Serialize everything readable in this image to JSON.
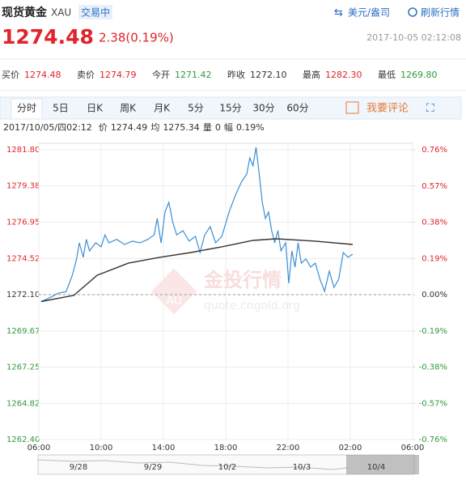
{
  "header": {
    "name": "现货黄金",
    "code": "XAU",
    "status": "交易中",
    "currency": "美元/盎司",
    "refresh": "刷新行情",
    "price": "1274.48",
    "change": "2.38(0.19%)",
    "time": "2017-10-05 02:12:08"
  },
  "quotes": [
    {
      "label": "买价",
      "value": "1274.48"
    },
    {
      "label": "卖价",
      "value": "1274.79"
    },
    {
      "label": "今开",
      "value": "1271.42"
    },
    {
      "label": "昨收",
      "value": "1272.10"
    },
    {
      "label": "最高",
      "value": "1282.30"
    },
    {
      "label": "最低",
      "value": "1269.80"
    }
  ],
  "tabs": [
    "分时",
    "5日",
    "日K",
    "周K",
    "月K",
    "5分",
    "15分",
    "30分",
    "60分"
  ],
  "comment": "我要评论",
  "info": [
    "2017/10/05/四02:12",
    "价",
    "1274.49",
    "均",
    "1275.34",
    "量",
    "0",
    "幅",
    "0.19%"
  ],
  "watermark": {
    "logo": "AU",
    "name": "金投行情",
    "site": "quote.cngold.org"
  },
  "navigator": {
    "labels": [
      "9/28",
      "9/29",
      "10/2",
      "10/3",
      "10/4"
    ]
  },
  "chart_data": {
    "type": "line",
    "xlim": [
      0,
      1440
    ],
    "xticks": [
      {
        "value": 0,
        "label": "06:00"
      },
      {
        "value": 240,
        "label": "10:00"
      },
      {
        "value": 480,
        "label": "14:00"
      },
      {
        "value": 720,
        "label": "18:00"
      },
      {
        "value": 960,
        "label": "22:00"
      },
      {
        "value": 1200,
        "label": "02:00"
      },
      {
        "value": 1440,
        "label": "06:00"
      }
    ],
    "ylim": [
      1262.4,
      1281.8
    ],
    "yticks": [
      {
        "value": 1281.8,
        "label": "1281.80"
      },
      1279.38,
      1276.95,
      1274.52,
      {
        "value": 1272.1,
        "label": "1272.10"
      },
      1269.67,
      1267.25,
      1264.82,
      {
        "value": 1262.4,
        "label": "1262.40"
      }
    ],
    "y2lim": [
      -0.76,
      0.76
    ],
    "y2ticks": [
      {
        "value": 0.76,
        "label": "0.76%"
      },
      {
        "value": 0.57,
        "label": "0.57%"
      },
      {
        "value": 0.38,
        "label": "0.38%"
      },
      {
        "value": 0.19,
        "label": "0.19%"
      },
      {
        "value": 0,
        "label": "0.00%"
      },
      {
        "value": -0.19,
        "label": "-0.19%"
      },
      {
        "value": -0.38,
        "label": "-0.38%"
      },
      {
        "value": -0.57,
        "label": "-0.57%"
      },
      {
        "value": -0.76,
        "label": "-0.76%"
      }
    ],
    "baseline": 1272.1,
    "grid": true,
    "series": [
      {
        "color": "#3a8fd6",
        "x": [
          9,
          45,
          75,
          105,
          129,
          144,
          156,
          171,
          183,
          195,
          219,
          240,
          255,
          270,
          300,
          330,
          360,
          390,
          420,
          444,
          456,
          471,
          486,
          501,
          516,
          531,
          555,
          579,
          603,
          621,
          639,
          660,
          681,
          705,
          735,
          759,
          780,
          801,
          813,
          825,
          837,
          849,
          861,
          873,
          885,
          897,
          909,
          921,
          933,
          951,
          963,
          975,
          987,
          999,
          1011,
          1029,
          1047,
          1065,
          1083,
          1101,
          1119,
          1137,
          1155,
          1173,
          1191,
          1209
        ],
        "values": [
          1271.64,
          1271.92,
          1272.2,
          1272.3,
          1273.4,
          1274.38,
          1275.57,
          1274.6,
          1275.8,
          1275.03,
          1275.57,
          1275.3,
          1276.1,
          1275.57,
          1275.8,
          1275.46,
          1275.68,
          1275.57,
          1275.8,
          1276.1,
          1277.2,
          1275.57,
          1277.63,
          1278.28,
          1276.93,
          1276.1,
          1276.38,
          1275.68,
          1276.0,
          1274.92,
          1276.1,
          1276.65,
          1275.57,
          1276.0,
          1277.74,
          1278.82,
          1279.63,
          1280.17,
          1281.26,
          1280.72,
          1281.96,
          1280.17,
          1278.28,
          1277.2,
          1277.63,
          1276.38,
          1275.57,
          1276.38,
          1275.03,
          1275.57,
          1272.86,
          1275.03,
          1273.94,
          1275.57,
          1274.21,
          1274.49,
          1273.94,
          1274.21,
          1273.13,
          1272.32,
          1273.67,
          1272.59,
          1273.13,
          1274.92,
          1274.6,
          1274.81
        ]
      },
      {
        "color": "#333333",
        "x": [
          9,
          135,
          225,
          345,
          465,
          585,
          705,
          825,
          915,
          1065,
          1209
        ],
        "values": [
          1271.64,
          1272.05,
          1273.4,
          1274.21,
          1274.6,
          1274.92,
          1275.3,
          1275.73,
          1275.84,
          1275.68,
          1275.46
        ]
      }
    ]
  }
}
